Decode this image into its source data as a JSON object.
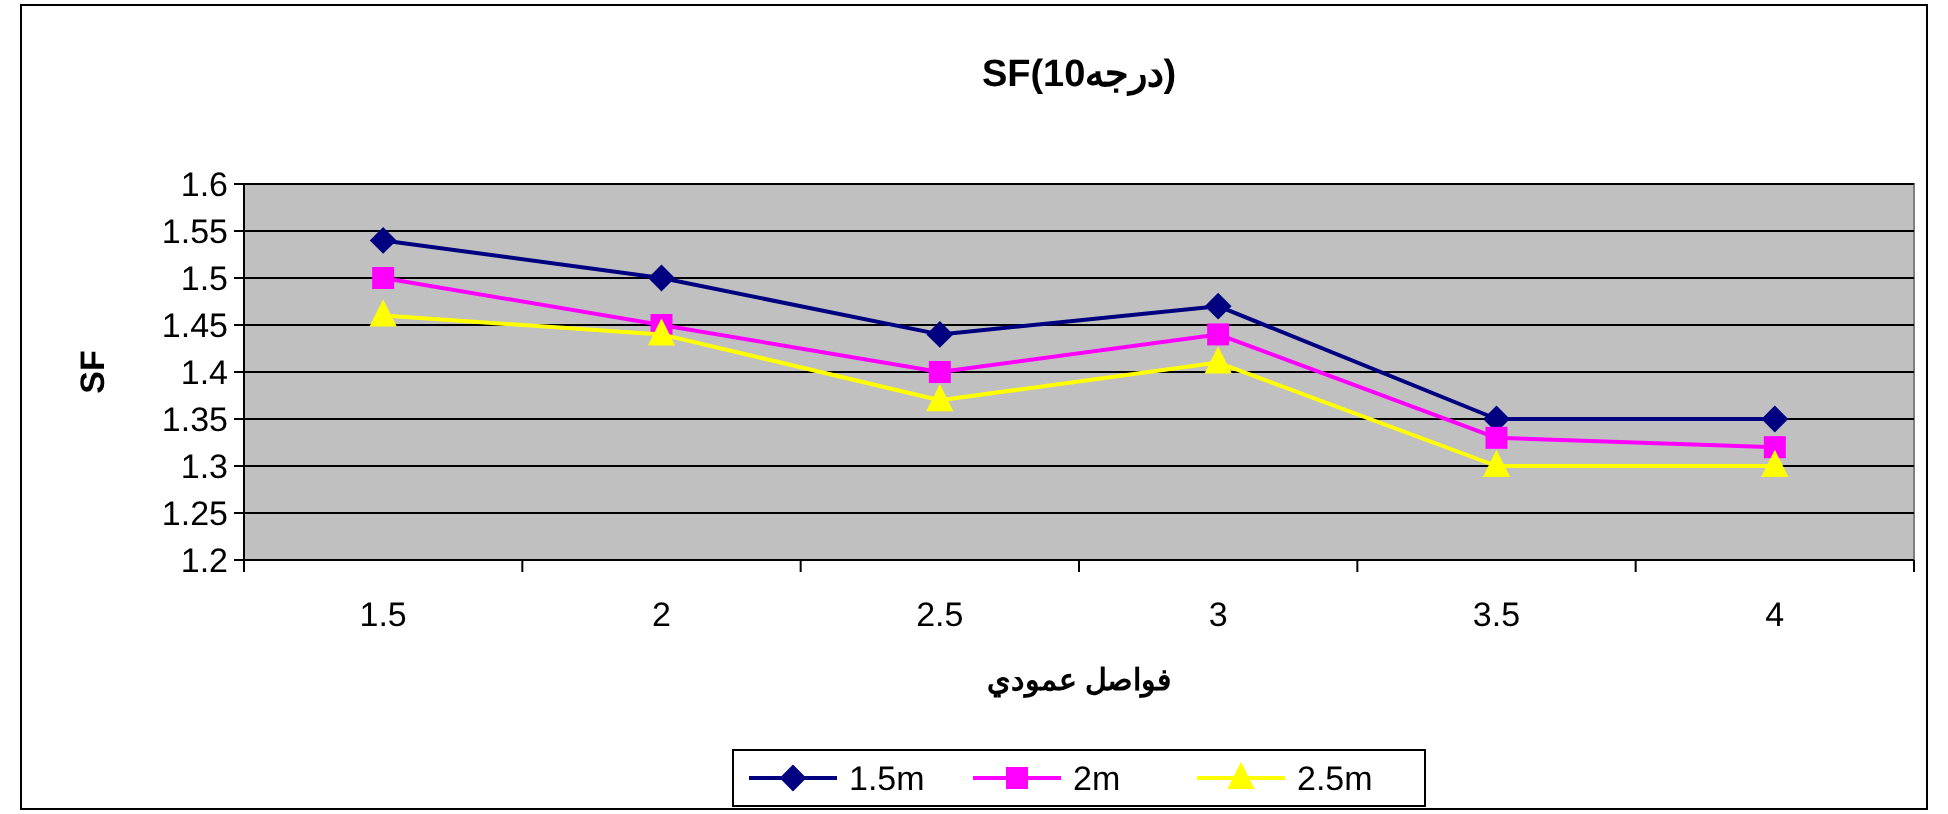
{
  "chart_data": {
    "type": "line",
    "title": "SF(10درجه)",
    "xlabel": "فواصل عمودي",
    "ylabel": "SF",
    "categories": [
      "1.5",
      "2",
      "2.5",
      "3",
      "3.5",
      "4"
    ],
    "series": [
      {
        "name": "1.5m",
        "color": "#000080",
        "marker": "diamond",
        "values": [
          1.54,
          1.5,
          1.44,
          1.47,
          1.35,
          1.35
        ]
      },
      {
        "name": "2m",
        "color": "#ff00ff",
        "marker": "square",
        "values": [
          1.5,
          1.45,
          1.4,
          1.44,
          1.33,
          1.32
        ]
      },
      {
        "name": "2.5m",
        "color": "#ffff00",
        "marker": "triangle",
        "values": [
          1.46,
          1.44,
          1.37,
          1.41,
          1.3,
          1.3
        ]
      }
    ],
    "ylim": [
      1.2,
      1.6
    ],
    "yticks": [
      1.2,
      1.25,
      1.3,
      1.35,
      1.4,
      1.45,
      1.5,
      1.55,
      1.6
    ],
    "grid": "y",
    "legend": "bottom"
  }
}
